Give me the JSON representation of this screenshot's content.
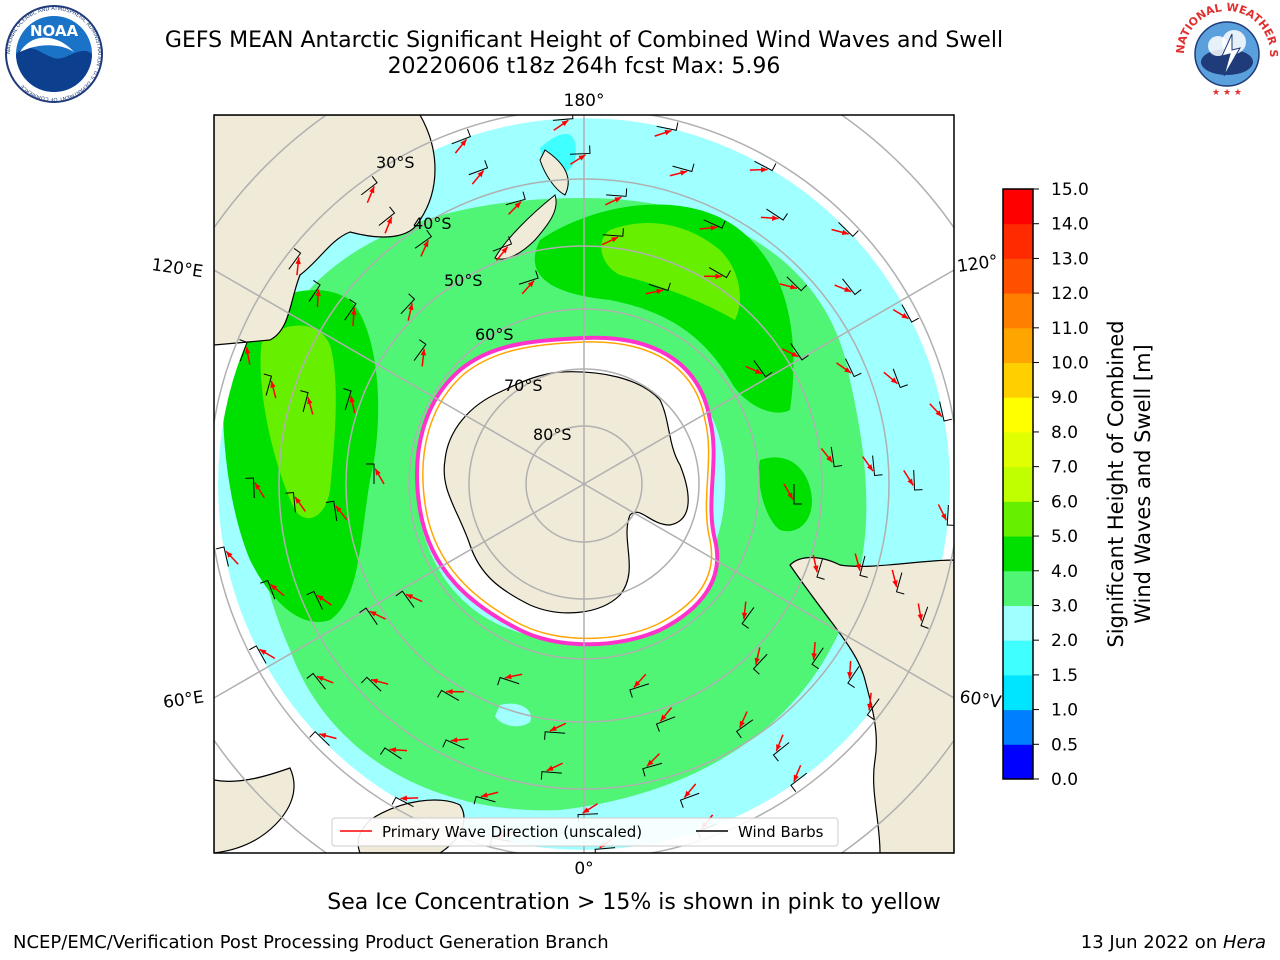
{
  "header": {
    "title_line1": "GEFS MEAN Antarctic Significant Height of Combined Wind Waves and Swell",
    "title_line2": "20220606 t18z 264h fcst   Max: 5.96"
  },
  "logos": {
    "left": {
      "text": "NOAA",
      "ring_text": "NATIONAL OCEANIC AND ATMOSPHERIC ADMINISTRATION · U.S. DEPARTMENT OF COMMERCE"
    },
    "right": {
      "ring_text": "NATIONAL WEATHER SERVICE"
    }
  },
  "map": {
    "longitude_labels": {
      "top": "180°",
      "bottom": "0°",
      "upper_left": "120°E",
      "upper_right": "120°",
      "lower_left": "60°E",
      "lower_right": "60°V"
    },
    "latitude_labels": [
      "30°S",
      "40°S",
      "50°S",
      "60°S",
      "70°S",
      "80°S"
    ],
    "legend": {
      "wave_direction": "Primary Wave Direction (unscaled)",
      "wind_barbs": "Wind Barbs"
    }
  },
  "colorbar": {
    "label_line1": "Significant Height of Combined",
    "label_line2": "Wind Waves and Swell [m]",
    "ticks": [
      "0.0",
      "0.5",
      "1.0",
      "1.5",
      "2.0",
      "3.0",
      "4.0",
      "5.0",
      "6.0",
      "7.0",
      "8.0",
      "9.0",
      "10.0",
      "11.0",
      "12.0",
      "13.0",
      "14.0",
      "15.0"
    ],
    "colors": [
      "#0000ff",
      "#0080ff",
      "#00e5ff",
      "#40ffff",
      "#a0ffff",
      "#50f575",
      "#00e000",
      "#66f000",
      "#c0ff00",
      "#e0ff00",
      "#ffff00",
      "#ffd000",
      "#ffa500",
      "#ff8000",
      "#ff5000",
      "#ff2a00",
      "#ff0000"
    ]
  },
  "colors": {
    "land": "#efebd8",
    "ice": "#ffffff",
    "wave_low": "#a0ffff",
    "wave_mid": "#50f575",
    "wave_high": "#00e000",
    "wave_peak": "#66f000",
    "arrow": "#ff0000",
    "grid": "#b0b0b0"
  },
  "caption": "Sea Ice Concentration > 15% is shown in pink to yellow",
  "footer": {
    "left": "NCEP/EMC/Verification Post Processing Product Generation Branch",
    "right_date": "13 Jun 2022 on ",
    "right_machine": "Hera"
  }
}
